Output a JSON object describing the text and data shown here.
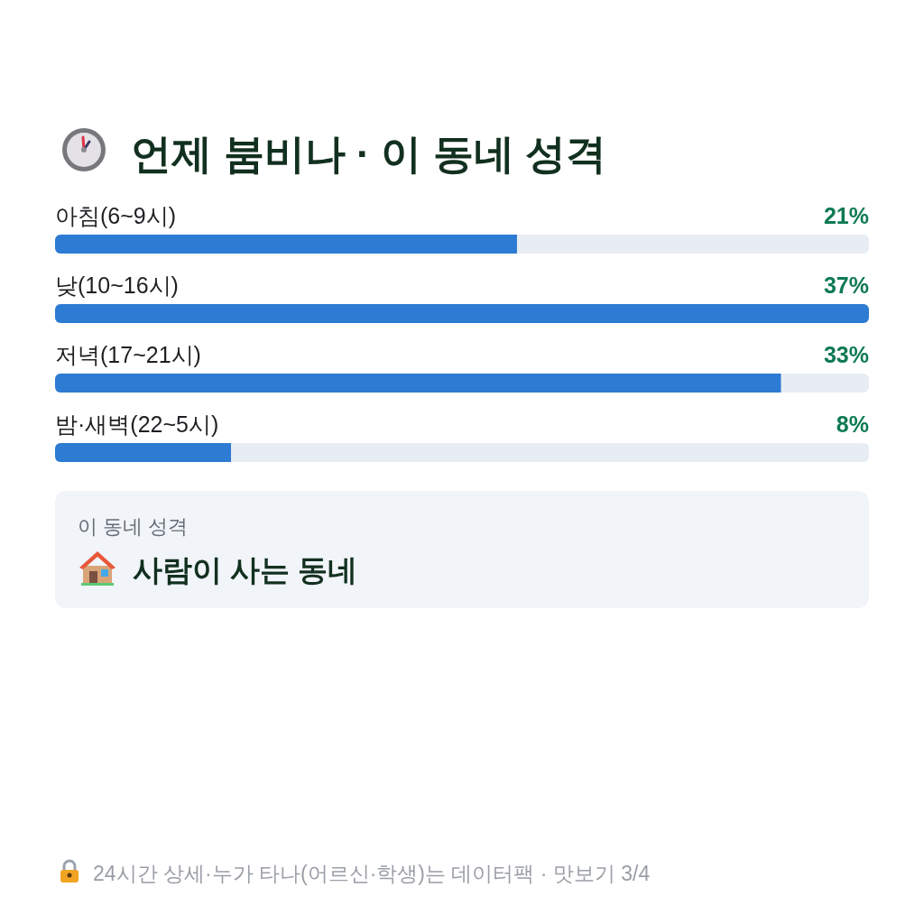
{
  "chart_data": {
    "type": "bar",
    "orientation": "horizontal",
    "title": "언제 붐비나 · 이 동네 성격",
    "categories": [
      "아침(6~9시)",
      "낮(10~16시)",
      "저녁(17~21시)",
      "밤·새벽(22~5시)"
    ],
    "values": [
      21,
      37,
      33,
      8
    ],
    "color": "#2d7bd2",
    "value_labels": [
      "21%",
      "37%",
      "33%",
      "8%"
    ],
    "annotations": [
      "이 동네 성격",
      "사람이 사는 동네",
      "24시간 상세·누가 타나(어르신·학생)는 데이터팩 · 맛보기 3/4"
    ]
  }
}
